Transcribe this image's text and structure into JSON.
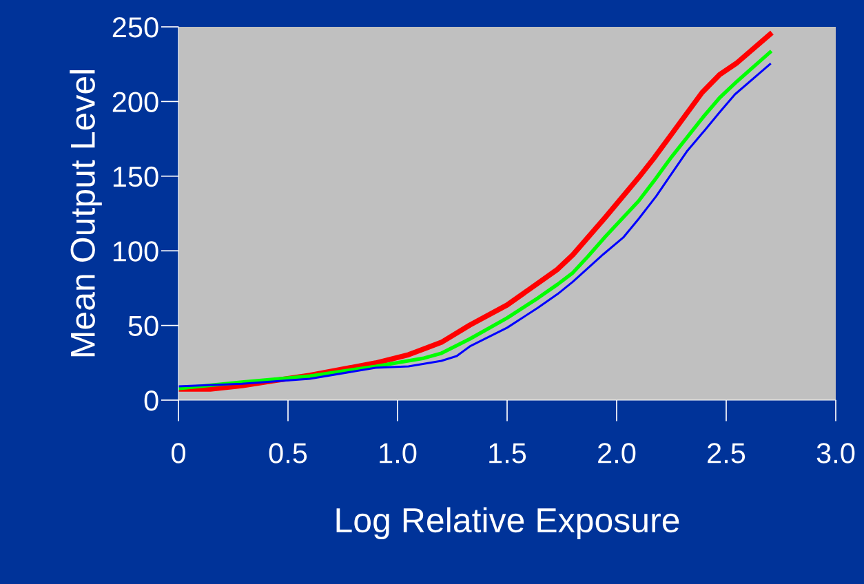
{
  "chart_data": {
    "type": "line",
    "xlabel": "Log Relative Exposure",
    "ylabel": "Mean Output Level",
    "xlim": [
      0,
      3.0
    ],
    "ylim": [
      0,
      250
    ],
    "xticks": [
      0,
      0.5,
      {
        "value": 1.0,
        "label": "1.0"
      },
      1.5,
      {
        "value": 2.0,
        "label": "2.0"
      },
      2.5,
      {
        "value": 3.0,
        "label": "3.0"
      }
    ],
    "yticks": [
      0,
      50,
      100,
      150,
      200,
      250
    ],
    "grid": false,
    "legend": false,
    "line_style": "solid",
    "marker": "none",
    "series": [
      {
        "color": "#ff0000",
        "x": [
          0,
          0.145,
          0.29,
          0.43,
          0.6,
          0.9,
          1.05,
          1.2,
          1.33,
          1.5,
          1.73,
          1.8,
          1.95,
          2.1,
          2.17,
          2.25,
          2.39,
          2.47,
          2.55,
          2.7
        ],
        "values": [
          7.4,
          7.4,
          9.7,
          12.9,
          16.6,
          24.9,
          30.4,
          38.7,
          50.3,
          63.7,
          87.6,
          97.3,
          122.7,
          149,
          162,
          178,
          206,
          218,
          226,
          245
        ]
      },
      {
        "color": "#00ff00",
        "x": [
          0,
          0.29,
          0.6,
          0.9,
          1.12,
          1.2,
          1.33,
          1.5,
          1.64,
          1.73,
          1.8,
          1.87,
          1.95,
          2.1,
          2.17,
          2.25,
          2.4,
          2.47,
          2.55,
          2.7
        ],
        "values": [
          7.8,
          12,
          16.1,
          22.6,
          28.1,
          31.4,
          41,
          55,
          68.3,
          77.5,
          85.3,
          96.4,
          109.8,
          133.3,
          146.7,
          162.8,
          190.5,
          202.5,
          213.6,
          233
        ]
      },
      {
        "color": "#0000ff",
        "x": [
          0,
          0.29,
          0.6,
          0.9,
          1.05,
          1.2,
          1.27,
          1.33,
          1.5,
          1.64,
          1.73,
          1.8,
          1.94,
          2.03,
          2.1,
          2.18,
          2.32,
          2.4,
          2.47,
          2.54,
          2.7
        ],
        "values": [
          9.2,
          11,
          14.3,
          21.7,
          22.6,
          26.3,
          29.5,
          36,
          48.5,
          61.8,
          71,
          79.3,
          97.8,
          108.9,
          121.3,
          136.5,
          166.5,
          180.4,
          192.8,
          204.8,
          225
        ]
      }
    ]
  }
}
